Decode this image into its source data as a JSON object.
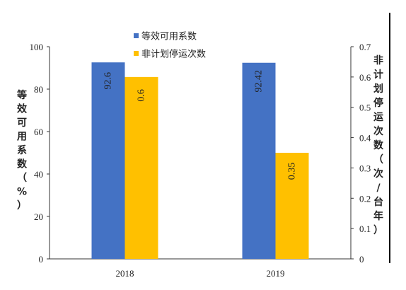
{
  "chart_data": {
    "type": "bar",
    "categories": [
      "2018",
      "2019"
    ],
    "series": [
      {
        "name": "等效可用系数",
        "values": [
          92.6,
          92.42
        ],
        "labels": [
          "92.6",
          "92.42"
        ],
        "axis": "left",
        "color": "#4472C4"
      },
      {
        "name": "非计划停运次数",
        "values": [
          0.6,
          0.35
        ],
        "labels": [
          "0.6",
          "0.35"
        ],
        "axis": "right",
        "color": "#FFC000"
      }
    ],
    "ylabel": "等效可用系数（%）",
    "ylabel_chars": [
      "等",
      "效",
      "可",
      "用",
      "系",
      "数",
      "（",
      "%",
      "）"
    ],
    "y2label": "非计划停运次数（次/台年）",
    "y2label_chars": [
      "非",
      "计",
      "划",
      "停",
      "运",
      "次",
      "数",
      "（",
      "次",
      "/",
      "台",
      "年",
      "）"
    ],
    "ylim": [
      0,
      100
    ],
    "yticks": [
      "0",
      "20",
      "40",
      "60",
      "80",
      "100"
    ],
    "y2lim": [
      0,
      0.7
    ],
    "y2ticks": [
      "0",
      "0.1",
      "0.2",
      "0.3",
      "0.4",
      "0.5",
      "0.6",
      "0.7"
    ],
    "legend_position": "top-center",
    "grid": false
  }
}
